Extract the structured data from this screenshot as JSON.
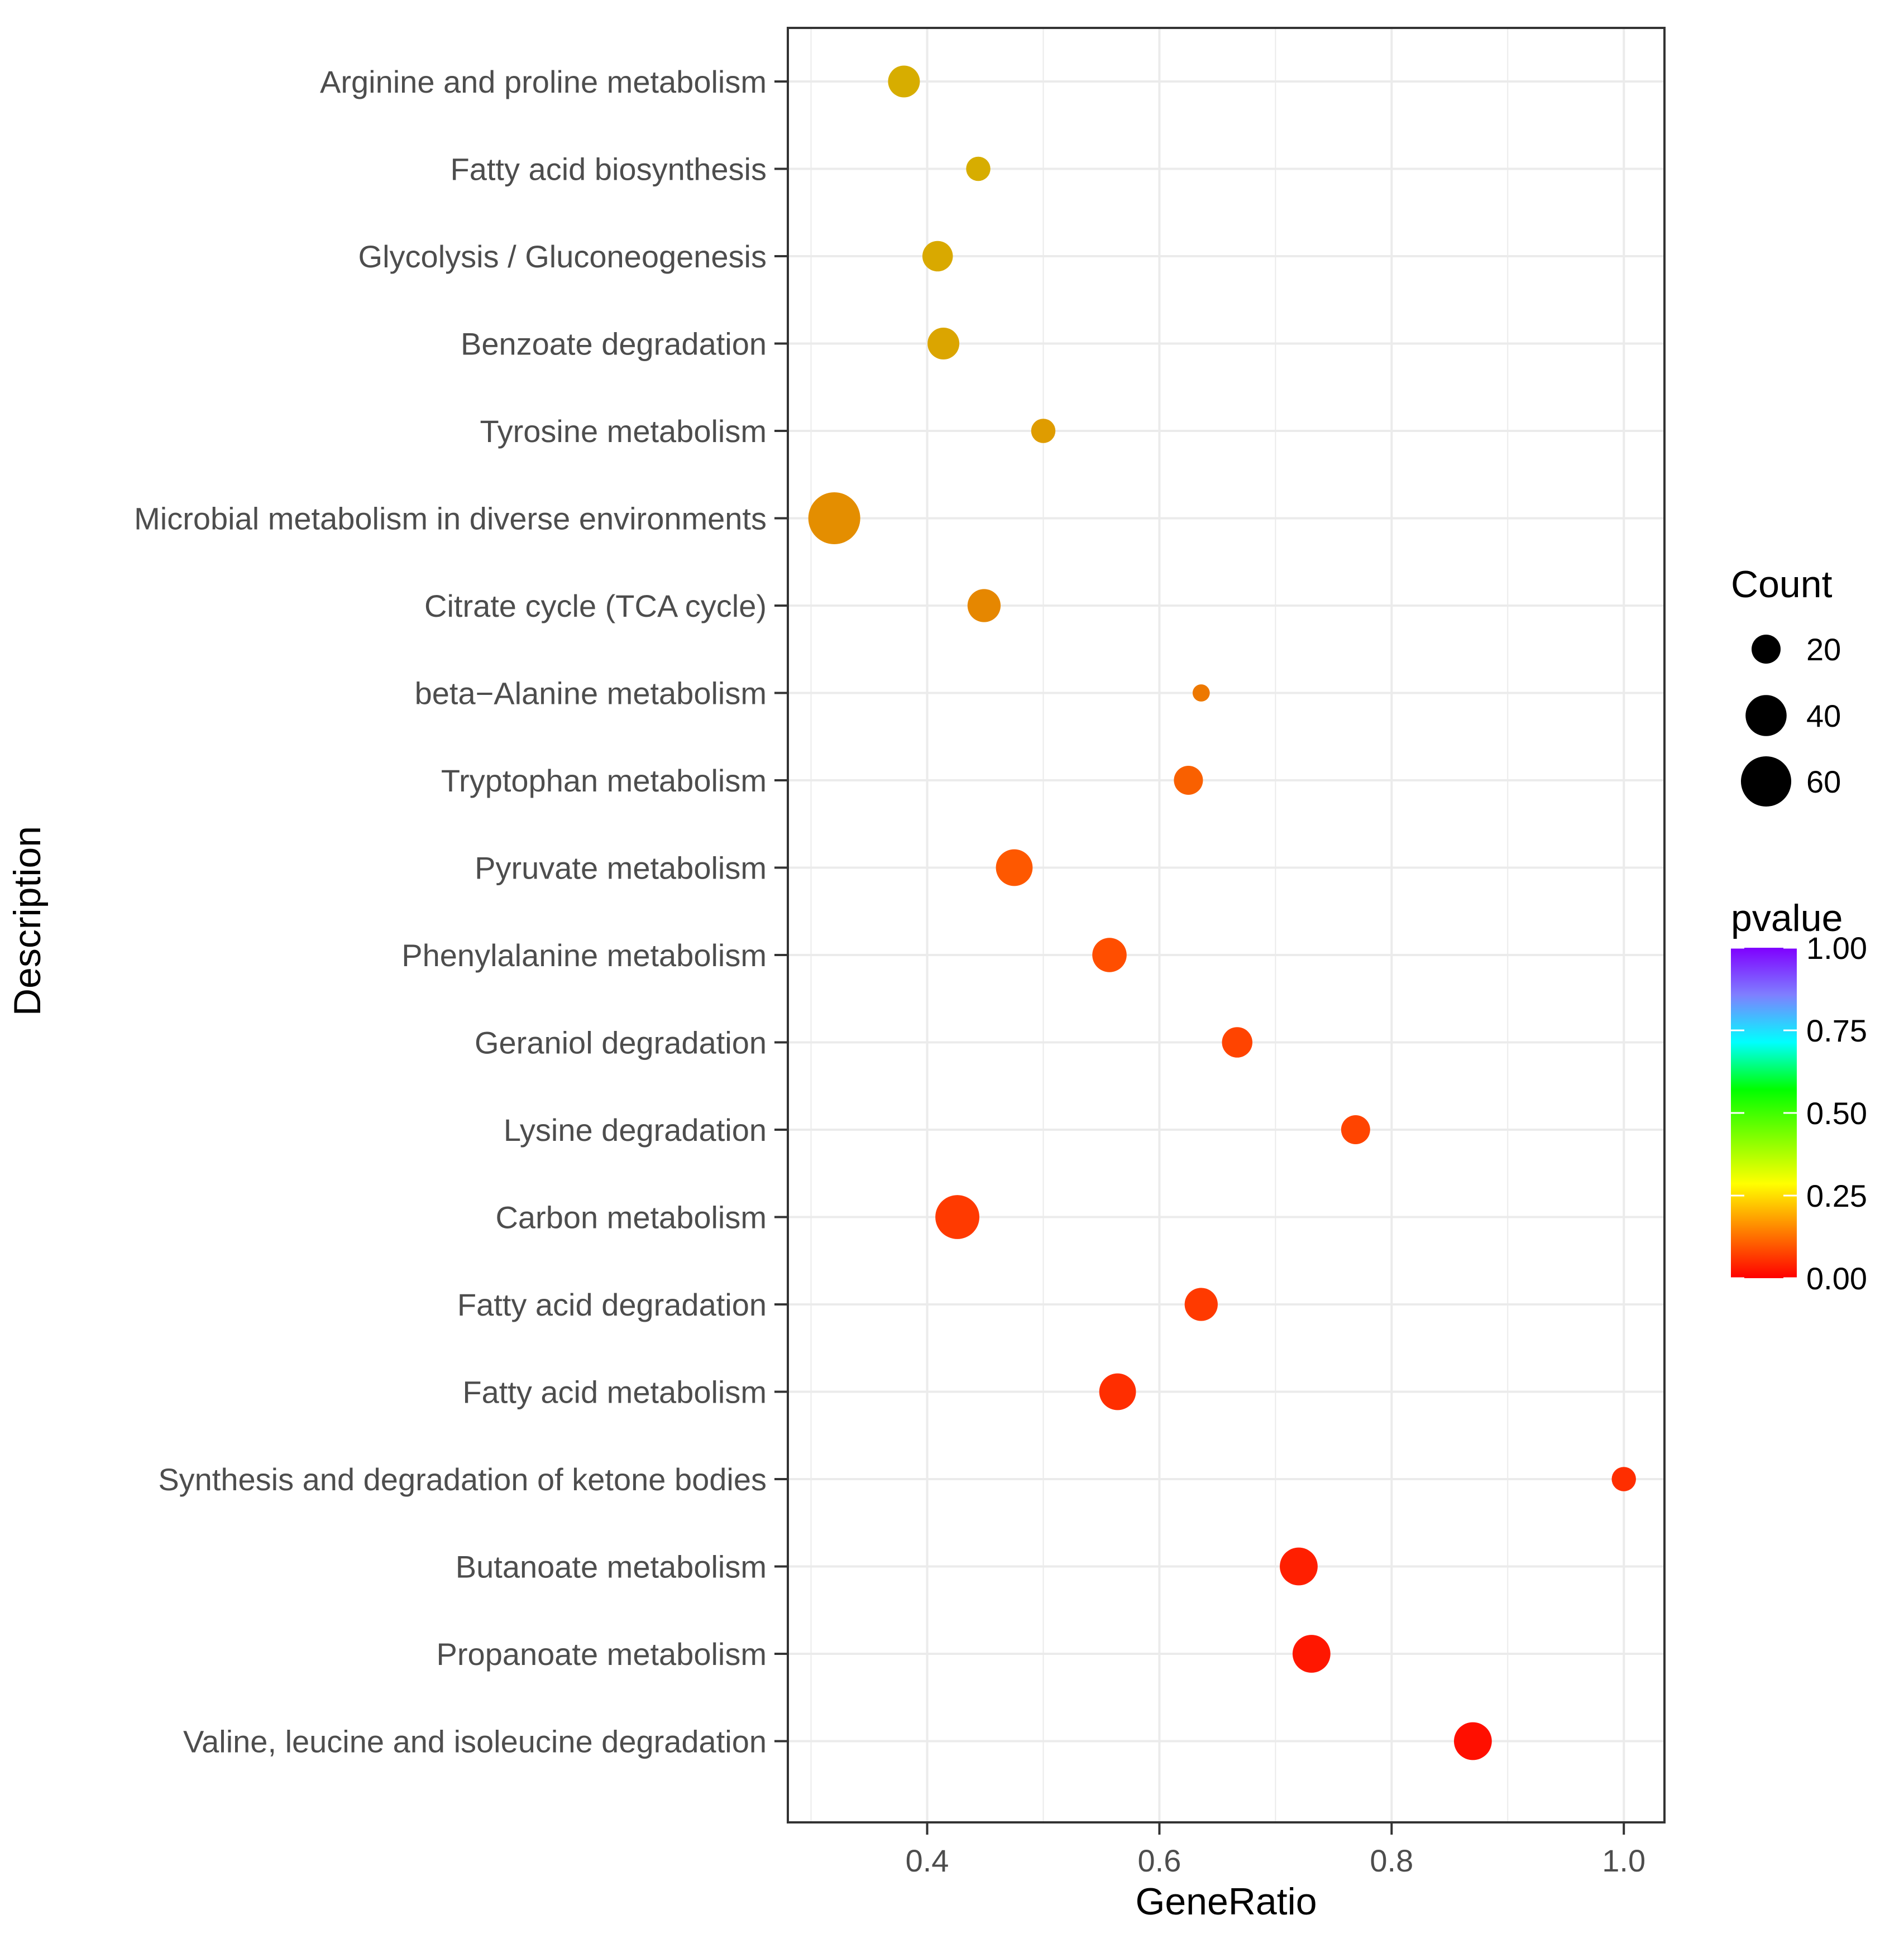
{
  "chart_data": {
    "type": "scatter",
    "xlabel": "GeneRatio",
    "ylabel": "Description",
    "xlim": [
      0.28,
      1.035
    ],
    "xticks": [
      "0.4",
      "0.6",
      "0.8",
      "1.0"
    ],
    "xtick_values": [
      0.4,
      0.6,
      0.8,
      1.0
    ],
    "categories": [
      "Arginine and proline metabolism",
      "Fatty acid biosynthesis",
      "Glycolysis / Gluconeogenesis",
      "Benzoate degradation",
      "Tyrosine metabolism",
      "Microbial metabolism in diverse environments",
      "Citrate cycle (TCA cycle)",
      "beta−Alanine metabolism",
      "Tryptophan metabolism",
      "Pyruvate metabolism",
      "Phenylalanine metabolism",
      "Geraniol degradation",
      "Lysine degradation",
      "Carbon metabolism",
      "Fatty acid degradation",
      "Fatty acid metabolism",
      "Synthesis and degradation of ketone bodies",
      "Butanoate metabolism",
      "Propanoate metabolism",
      "Valine, leucine and isoleucine degradation"
    ],
    "points": [
      {
        "x": 0.38,
        "count": 24,
        "pvalue": 0.2
      },
      {
        "x": 0.444,
        "count": 14,
        "pvalue": 0.2
      },
      {
        "x": 0.409,
        "count": 22,
        "pvalue": 0.19
      },
      {
        "x": 0.414,
        "count": 24,
        "pvalue": 0.18
      },
      {
        "x": 0.5,
        "count": 14,
        "pvalue": 0.16
      },
      {
        "x": 0.32,
        "count": 64,
        "pvalue": 0.14
      },
      {
        "x": 0.449,
        "count": 26,
        "pvalue": 0.13
      },
      {
        "x": 0.636,
        "count": 7,
        "pvalue": 0.11
      },
      {
        "x": 0.625,
        "count": 20,
        "pvalue": 0.08
      },
      {
        "x": 0.475,
        "count": 32,
        "pvalue": 0.07
      },
      {
        "x": 0.557,
        "count": 28,
        "pvalue": 0.06
      },
      {
        "x": 0.667,
        "count": 22,
        "pvalue": 0.05
      },
      {
        "x": 0.769,
        "count": 20,
        "pvalue": 0.05
      },
      {
        "x": 0.426,
        "count": 46,
        "pvalue": 0.04
      },
      {
        "x": 0.636,
        "count": 26,
        "pvalue": 0.04
      },
      {
        "x": 0.564,
        "count": 32,
        "pvalue": 0.03
      },
      {
        "x": 1.0,
        "count": 14,
        "pvalue": 0.03
      },
      {
        "x": 0.72,
        "count": 34,
        "pvalue": 0.02
      },
      {
        "x": 0.731,
        "count": 34,
        "pvalue": 0.015
      },
      {
        "x": 0.87,
        "count": 34,
        "pvalue": 0.01
      }
    ],
    "legend_size": {
      "title": "Count",
      "labels": [
        "20",
        "40",
        "60"
      ],
      "values": [
        20,
        40,
        60
      ]
    },
    "legend_color": {
      "title": "pvalue",
      "labels": [
        "1.00",
        "0.75",
        "0.50",
        "0.25",
        "0.00"
      ],
      "values": [
        1.0,
        0.75,
        0.5,
        0.25,
        0.0
      ],
      "range": [
        0,
        1
      ]
    },
    "colors": {
      "gradient": [
        "#ff0000",
        "#ff7f00",
        "#ffff00",
        "#7fff00",
        "#00ff00",
        "#00ffff",
        "#7f7fff",
        "#7f00ff"
      ],
      "point_scale": [
        "#ff0000",
        "#ff3300",
        "#ff5500",
        "#f07000",
        "#e58a00",
        "#dea000",
        "#d7ad00"
      ],
      "grid": "#ebebeb",
      "panel_border": "#333333",
      "text": "#4d4d4d"
    },
    "legend_placement": "right"
  }
}
